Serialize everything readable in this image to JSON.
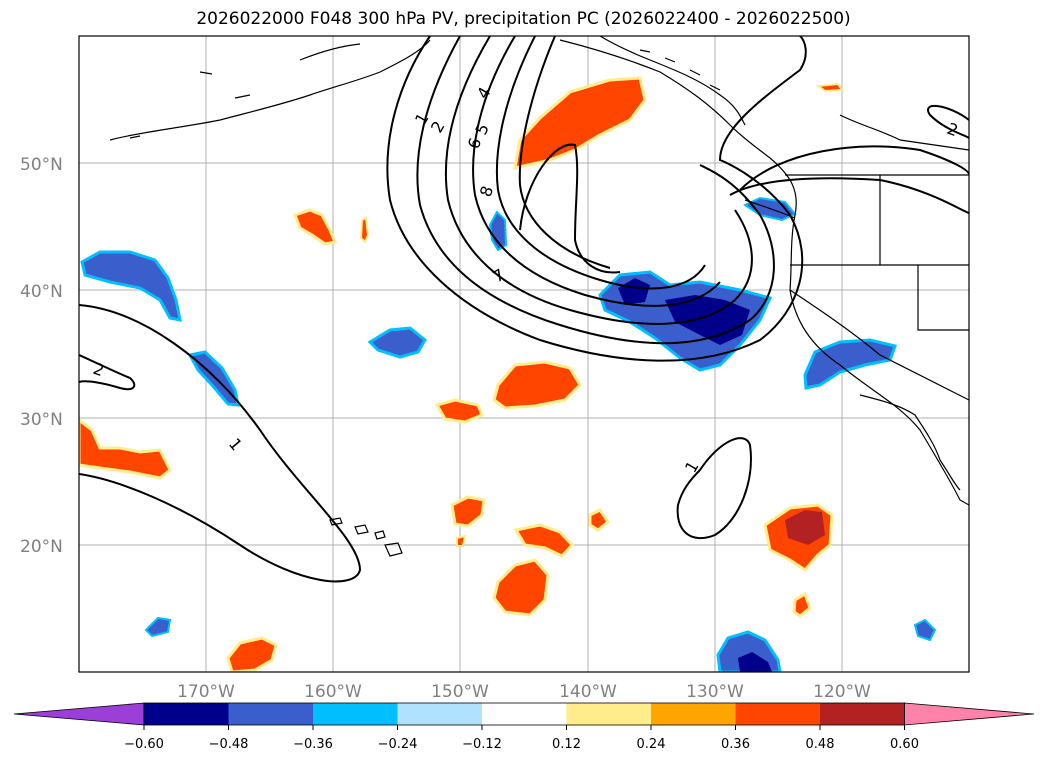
{
  "title": "2026022000 F048 300 hPa PV, precipitation PC (2026022400 - 2026022500)",
  "map": {
    "lat_ticks": [
      "50°N",
      "40°N",
      "30°N",
      "20°N"
    ],
    "lon_ticks": [
      "170°W",
      "160°W",
      "150°W",
      "140°W",
      "130°W",
      "120°W"
    ],
    "gridline_color": "#b0b0b0",
    "tick_label_color": "#808080",
    "coastline_color": "#000000"
  },
  "colorbar": {
    "ticks": [
      "−0.60",
      "−0.48",
      "−0.36",
      "−0.24",
      "−0.12",
      "0.12",
      "0.24",
      "0.36",
      "0.48",
      "0.60"
    ],
    "colors": [
      "#9b3fd8",
      "#00008b",
      "#3a5fcd",
      "#00bfff",
      "#b0e2ff",
      "#ffffff",
      "#ffec8b",
      "#ffa500",
      "#ff4500",
      "#b22222",
      "#ff82ab"
    ]
  },
  "pv_contour_labels": [
    "1",
    "2",
    "4",
    "5",
    "6",
    "8",
    "7",
    "1",
    "2",
    "1",
    "2"
  ],
  "anomaly_colors": {
    "dark_blue": "#00008b",
    "blue": "#3a5fcd",
    "light_blue": "#00bfff",
    "orange": "#ff4500",
    "red": "#b22222",
    "yellow": "#ffec8b"
  }
}
